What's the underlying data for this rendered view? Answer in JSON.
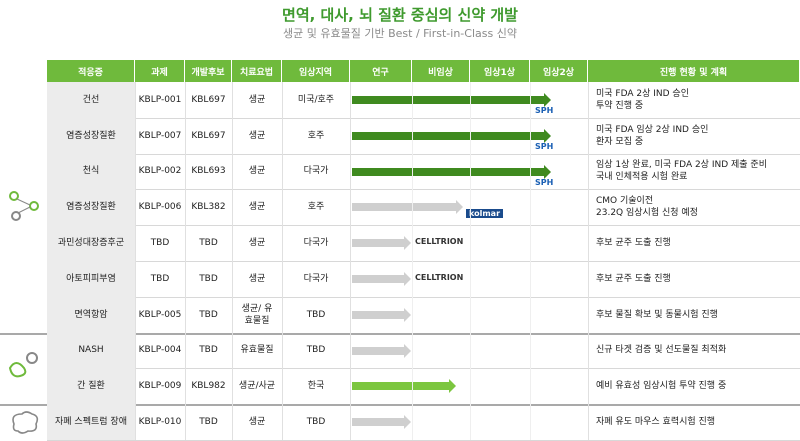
{
  "header": {
    "title": "면역, 대사, 뇌 질환 중심의 신약 개발",
    "subtitle": "생균 및 유효물질 기반 Best / First-in-Class 신약"
  },
  "table": {
    "columns": [
      "적응증",
      "과제",
      "개발후보",
      "치료요법",
      "임상지역",
      "연구",
      "비임상",
      "임상1상",
      "임상2상",
      "진행 현황 및 계획"
    ],
    "rows": [
      {
        "indication": "건선",
        "project": "KBLP-001",
        "candidate": "KBL697",
        "therapy": "생균",
        "region": "미국/호주",
        "partner": "SPH",
        "status": [
          "미국 FDA 2상 IND 승인",
          "투약 진행 중"
        ]
      },
      {
        "indication": "염증성장질환",
        "project": "KBLP-007",
        "candidate": "KBL697",
        "therapy": "생균",
        "region": "호주",
        "partner": "SPH",
        "status": [
          "미국 FDA 임상 2상 IND 승인",
          "환자 모집 중"
        ]
      },
      {
        "indication": "천식",
        "project": "KBLP-002",
        "candidate": "KBL693",
        "therapy": "생균",
        "region": "다국가",
        "partner": "SPH",
        "status": [
          "임상 1상 완료, 미국 FDA 2상 IND 제출 준비",
          "국내 인체적용 시험 완료"
        ]
      },
      {
        "indication": "염증성장질환",
        "project": "KBLP-006",
        "candidate": "KBL382",
        "therapy": "생균",
        "region": "호주",
        "partner": "kolmar",
        "status": [
          "CMO 기술이전",
          "23.2Q 임상시험 신청 예정"
        ]
      },
      {
        "indication": "과민성대장증후군",
        "project": "TBD",
        "candidate": "TBD",
        "therapy": "생균",
        "region": "다국가",
        "partner": "CELLTRION",
        "status": [
          "후보 균주 도출 진행"
        ]
      },
      {
        "indication": "아토피피부염",
        "project": "TBD",
        "candidate": "TBD",
        "therapy": "생균",
        "region": "다국가",
        "partner": "CELLTRION",
        "status": [
          "후보 균주 도출 진행"
        ]
      },
      {
        "indication": "면역항암",
        "project": "KBLP-005",
        "candidate": "TBD",
        "therapy": "생균/ 유효물질",
        "region": "TBD",
        "status": [
          "후보 물질 확보 및 동물시험 진행"
        ]
      },
      {
        "indication": "NASH",
        "project": "KBLP-004",
        "candidate": "TBD",
        "therapy": "유효물질",
        "region": "TBD",
        "status": [
          "신규 타겟 검증 및 선도물질 최적화"
        ]
      },
      {
        "indication": "간 질환",
        "project": "KBLP-009",
        "candidate": "KBL982",
        "therapy": "생균/사균",
        "region": "한국",
        "status": [
          "예비 유효성 임상시험 투약 진행 중"
        ]
      },
      {
        "indication": "자폐 스펙트럼 장애",
        "project": "KBLP-010",
        "candidate": "TBD",
        "therapy": "생균",
        "region": "TBD",
        "status": [
          "자폐 유도 마우스 효력시험 진행"
        ]
      }
    ]
  }
}
